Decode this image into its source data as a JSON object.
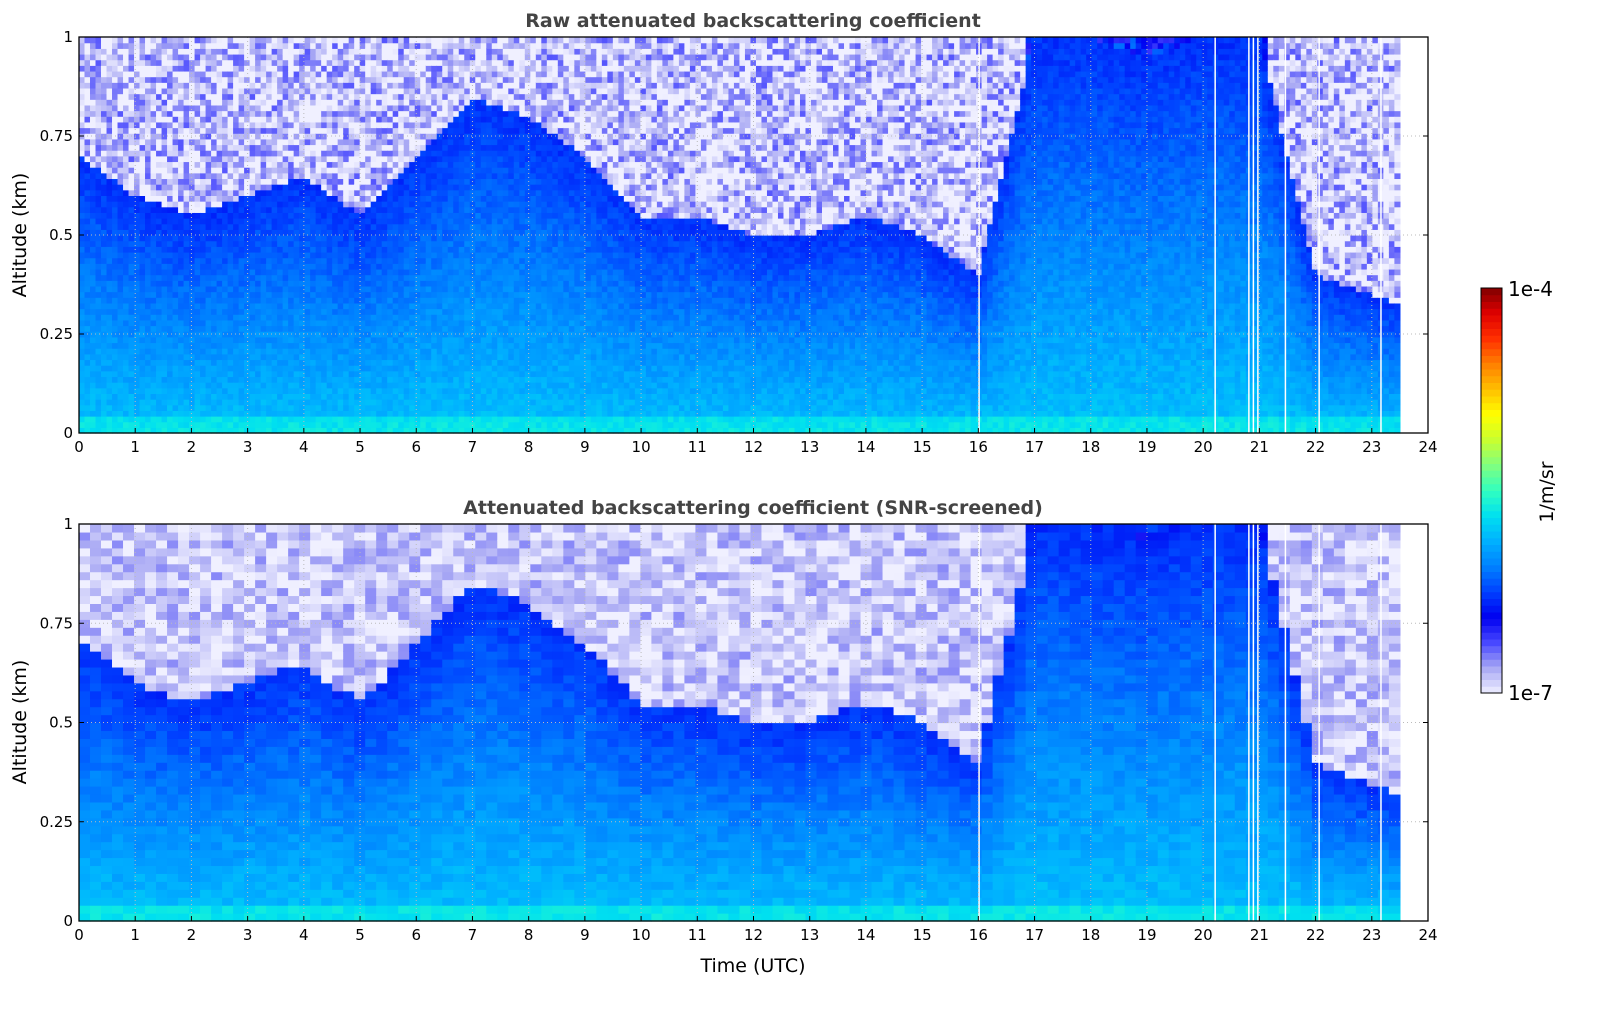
{
  "chart_data": [
    {
      "type": "heatmap",
      "title": "Raw attenuated backscattering coefficient",
      "xlabel": "",
      "ylabel": "Altitude (km)",
      "xlim": [
        0,
        24
      ],
      "ylim": [
        0,
        1
      ],
      "xticks": [
        "0",
        "1",
        "2",
        "3",
        "4",
        "5",
        "6",
        "7",
        "8",
        "9",
        "10",
        "11",
        "12",
        "13",
        "14",
        "15",
        "16",
        "17",
        "18",
        "19",
        "20",
        "21",
        "22",
        "23",
        "24"
      ],
      "yticks": [
        "0",
        "0.25",
        "0.5",
        "0.75",
        "1"
      ],
      "grid": true,
      "screened": false
    },
    {
      "type": "heatmap",
      "title": "Attenuated backscattering coefficient (SNR-screened)",
      "xlabel": "Time (UTC)",
      "ylabel": "Altitude (km)",
      "xlim": [
        0,
        24
      ],
      "ylim": [
        0,
        1
      ],
      "xticks": [
        "0",
        "1",
        "2",
        "3",
        "4",
        "5",
        "6",
        "7",
        "8",
        "9",
        "10",
        "11",
        "12",
        "13",
        "14",
        "15",
        "16",
        "17",
        "18",
        "19",
        "20",
        "21",
        "22",
        "23",
        "24"
      ],
      "yticks": [
        "0",
        "0.25",
        "0.5",
        "0.75",
        "1"
      ],
      "grid": true,
      "screened": true
    }
  ],
  "shared": {
    "data_end_hour": 23.5,
    "gap_hours": [
      16.0,
      20.2,
      20.8,
      20.88,
      20.96,
      21.45,
      22.05,
      23.15
    ],
    "layer_top_km_by_hour": [
      0.7,
      0.6,
      0.55,
      0.6,
      0.65,
      0.55,
      0.7,
      0.85,
      0.8,
      0.7,
      0.55,
      0.55,
      0.5,
      0.5,
      0.55,
      0.5,
      0.4,
      1.0,
      1.0,
      0.95,
      1.0,
      1.0,
      0.4,
      0.35,
      0.3
    ],
    "log10_value_surface": -5.8,
    "log10_value_layer_top": -6.3,
    "log10_value_above_layer": -6.9
  },
  "colorbar": {
    "label": "1/m/sr",
    "min_label": "1e-7",
    "max_label": "1e-4",
    "log10_range": [
      -7,
      -4
    ],
    "colors": [
      "#f0f0ff",
      "#a8a8f4",
      "#4848ff",
      "#0000f0",
      "#0040ff",
      "#0080ff",
      "#00b0ff",
      "#00e0f0",
      "#30ffc0",
      "#80ff80",
      "#c8ff30",
      "#ffff00",
      "#ffc000",
      "#ff8000",
      "#ff3000",
      "#e00000",
      "#800000"
    ]
  }
}
